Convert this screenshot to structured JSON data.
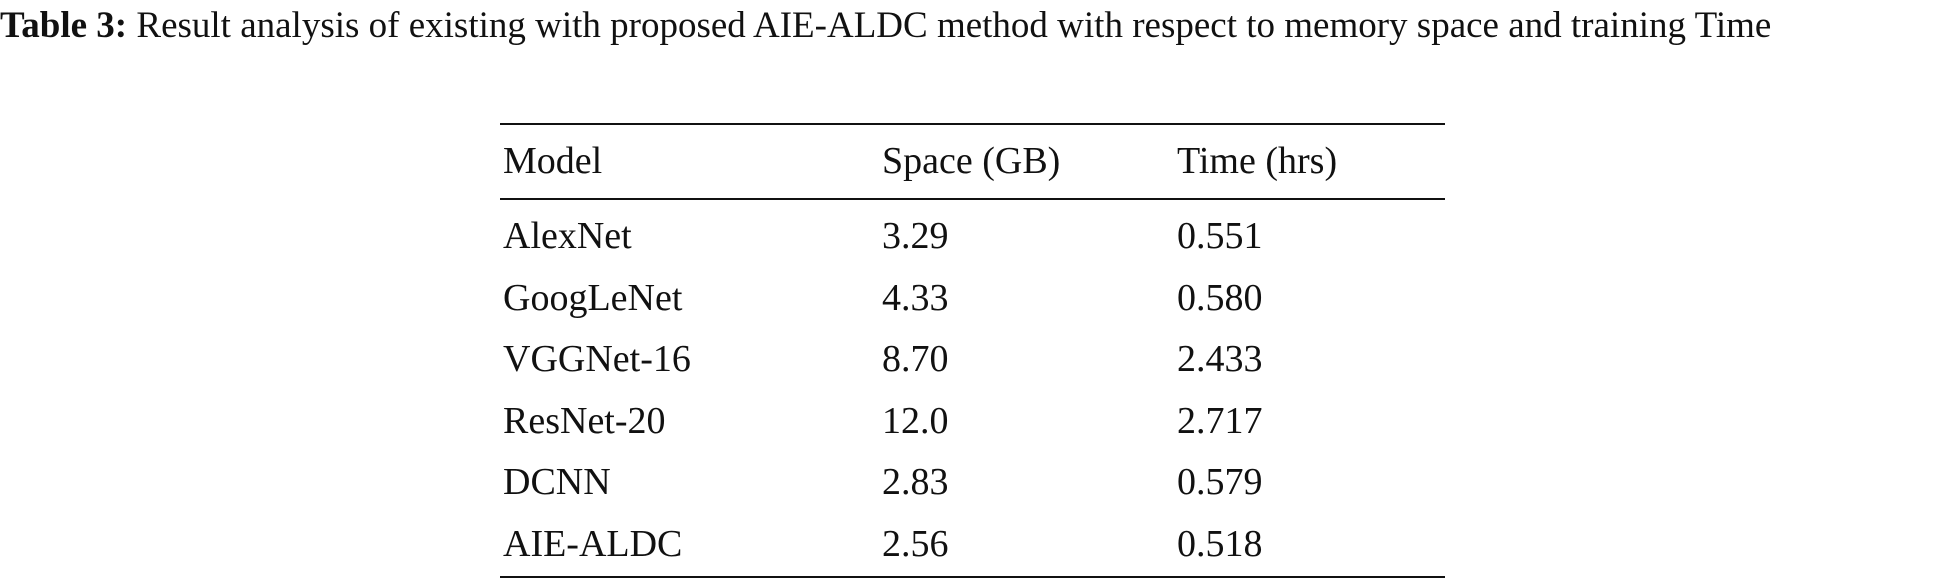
{
  "caption": {
    "label": "Table 3:",
    "text": "Result analysis of existing with proposed AIE-ALDC method with respect to memory space and training Time"
  },
  "table": {
    "header": [
      "Model",
      "Space (GB)",
      "Time (hrs)"
    ],
    "rows": [
      [
        "AlexNet",
        "3.29",
        "0.551"
      ],
      [
        "GoogLeNet",
        "4.33",
        "0.580"
      ],
      [
        "VGGNet-16",
        "8.70",
        "2.433"
      ],
      [
        "ResNet-20",
        "12.0",
        "2.717"
      ],
      [
        "DCNN",
        "2.83",
        "0.579"
      ],
      [
        "AIE-ALDC",
        "2.56",
        "0.518"
      ]
    ]
  }
}
